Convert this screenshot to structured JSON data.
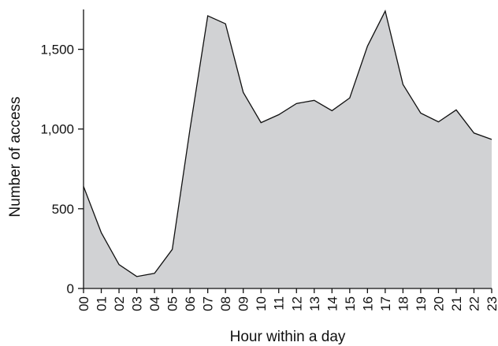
{
  "chart_data": {
    "type": "area",
    "xlabel": "Hour within a day",
    "ylabel": "Number of access",
    "x": [
      "00",
      "01",
      "02",
      "03",
      "04",
      "05",
      "06",
      "07",
      "08",
      "09",
      "10",
      "11",
      "12",
      "13",
      "14",
      "15",
      "16",
      "17",
      "18",
      "19",
      "20",
      "21",
      "22",
      "23"
    ],
    "values": [
      640,
      350,
      150,
      75,
      95,
      245,
      1000,
      1710,
      1660,
      1230,
      1040,
      1090,
      1160,
      1180,
      1115,
      1195,
      1520,
      1740,
      1280,
      1100,
      1045,
      1120,
      975,
      935
    ],
    "ylim": [
      0,
      1750
    ],
    "yticks": [
      0,
      500,
      1000,
      1500
    ],
    "ytick_labels": [
      "0",
      "500",
      "1,000",
      "1,500"
    ],
    "grid": false,
    "fill_color": "#d1d2d4",
    "line_color": "#111111"
  }
}
